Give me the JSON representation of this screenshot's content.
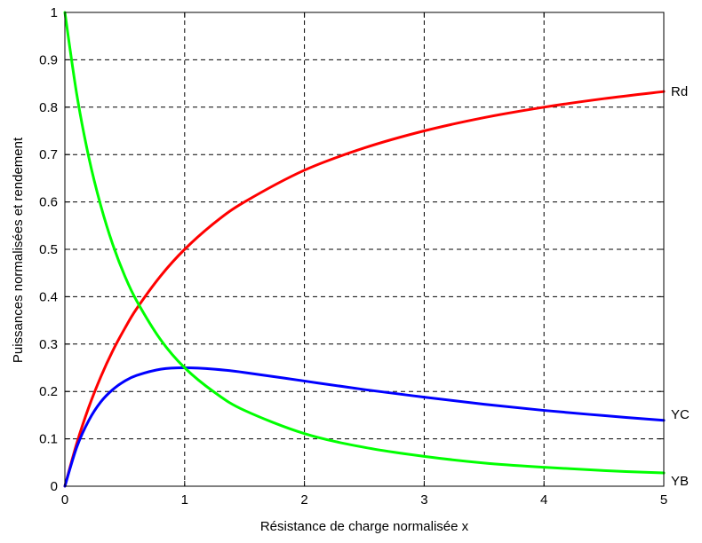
{
  "chart_data": {
    "type": "line",
    "xlabel": "Résistance de charge normalisée x",
    "ylabel": "Puissances normalisées et rendement",
    "xlim": [
      0,
      5
    ],
    "ylim": [
      0,
      1
    ],
    "x_ticks": [
      "0",
      "1",
      "2",
      "3",
      "4",
      "5"
    ],
    "y_ticks": [
      "0",
      "0.1",
      "0.2",
      "0.3",
      "0.4",
      "0.5",
      "0.6",
      "0.7",
      "0.8",
      "0.9",
      "1"
    ],
    "grid": true,
    "series": [
      {
        "name": "Rd",
        "color": "#ff0000",
        "x": [
          0,
          0.1,
          0.2,
          0.3,
          0.4,
          0.5,
          0.6,
          0.8,
          1.0,
          1.25,
          1.5,
          2.0,
          2.5,
          3.0,
          3.5,
          4.0,
          4.5,
          5.0
        ],
        "y": [
          0,
          0.091,
          0.167,
          0.231,
          0.286,
          0.333,
          0.375,
          0.444,
          0.5,
          0.556,
          0.6,
          0.667,
          0.714,
          0.75,
          0.778,
          0.8,
          0.818,
          0.833
        ]
      },
      {
        "name": "YC",
        "color": "#0000ff",
        "x": [
          0,
          0.1,
          0.2,
          0.3,
          0.4,
          0.5,
          0.6,
          0.8,
          1.0,
          1.25,
          1.5,
          2.0,
          2.5,
          3.0,
          3.5,
          4.0,
          4.5,
          5.0
        ],
        "y": [
          0,
          0.083,
          0.139,
          0.178,
          0.204,
          0.222,
          0.234,
          0.247,
          0.25,
          0.247,
          0.24,
          0.222,
          0.204,
          0.188,
          0.173,
          0.16,
          0.149,
          0.139
        ]
      },
      {
        "name": "YB",
        "color": "#00ff00",
        "x": [
          0,
          0.1,
          0.2,
          0.3,
          0.4,
          0.5,
          0.6,
          0.8,
          1.0,
          1.25,
          1.5,
          2.0,
          2.5,
          3.0,
          3.5,
          4.0,
          4.5,
          5.0
        ],
        "y": [
          1,
          0.826,
          0.694,
          0.592,
          0.51,
          0.444,
          0.391,
          0.309,
          0.25,
          0.198,
          0.16,
          0.111,
          0.082,
          0.063,
          0.049,
          0.04,
          0.033,
          0.028
        ]
      }
    ]
  }
}
